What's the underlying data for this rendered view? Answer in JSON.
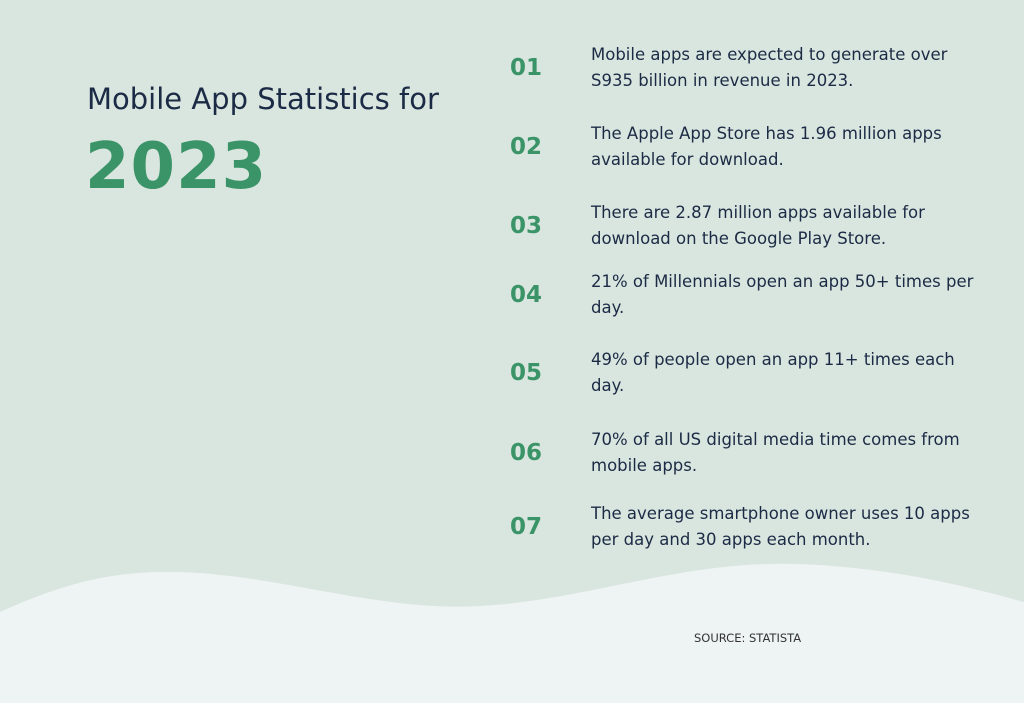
{
  "header": {
    "title": "Mobile App Statistics for",
    "year": "2023"
  },
  "items": [
    {
      "number": "01",
      "text": "Mobile apps are expected to generate over S935 billion in revenue in 2023."
    },
    {
      "number": "02",
      "text": "The Apple App Store has 1.96 million apps available for download."
    },
    {
      "number": "03",
      "text": "There are 2.87 million apps available for download on the Google Play Store."
    },
    {
      "number": "04",
      "text": "21% of Millennials open an app 50+ times per day."
    },
    {
      "number": "05",
      "text": "49% of people open an app 11+ times each day."
    },
    {
      "number": "06",
      "text": "70% of all US digital media time comes from mobile apps."
    },
    {
      "number": "07",
      "text": "The average smartphone owner uses 10 apps per day and 30 apps each month."
    }
  ],
  "source": "SOURCE: STATISTA"
}
